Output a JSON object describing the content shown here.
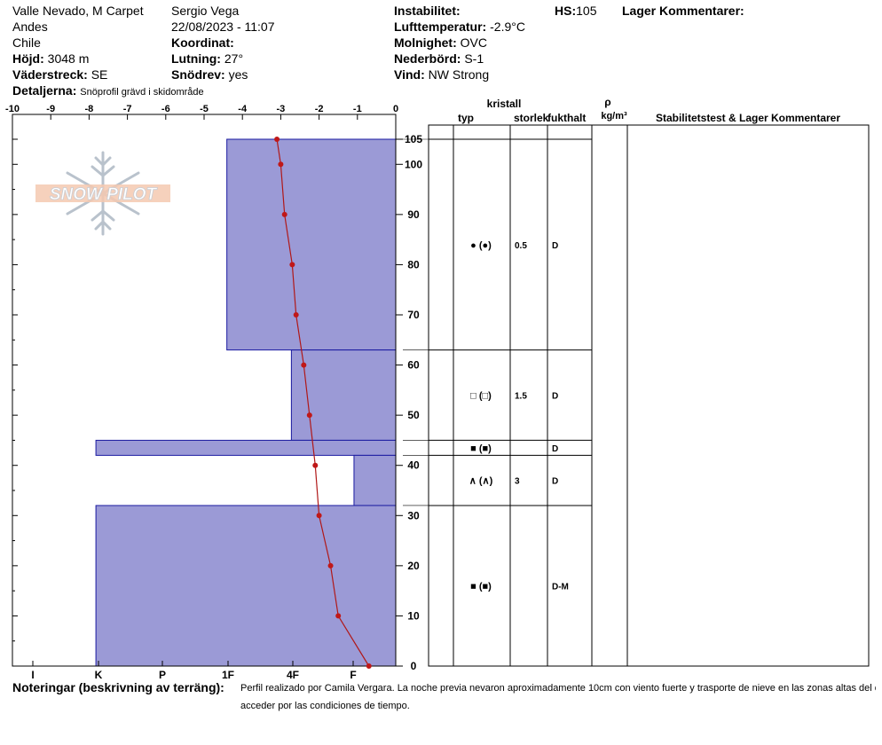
{
  "header": {
    "location": "Valle Nevado, M Carpet",
    "range": "Andes",
    "country": "Chile",
    "elevation_label": "Höjd:",
    "elevation": "3048 m",
    "aspect_label": "Väderstreck:",
    "aspect": "SE",
    "details_label": "Detaljerna:",
    "details": "Snöprofil grävd i skidområde",
    "observer": "Sergio Vega",
    "datetime": "22/08/2023 - 11:07",
    "coord_label": "Koordinat:",
    "slope_label": "Lutning:",
    "slope": "27°",
    "drift_label": "Snödrev:",
    "drift": "yes",
    "instability_label": "Instabilitet:",
    "airtemp_label": "Lufttemperatur:",
    "airtemp": "-2.9°C",
    "sky_label": "Molnighet:",
    "sky": "OVC",
    "precip_label": "Nederbörd:",
    "precip": "S-1",
    "wind_label": "Vind:",
    "wind": "NW Strong",
    "hs_label": "HS:",
    "hs": "105",
    "layer_comments_label": "Lager Kommentarer:"
  },
  "logo_text": "SNOW PILOT",
  "table_headers": {
    "crystal": "kristall",
    "type": "typ",
    "size": "storlek",
    "moisture": "fukthalt",
    "rho": "ρ",
    "density_unit": "kg/m³",
    "stability": "Stabilitetstest & Lager Kommentarer"
  },
  "notes_label": "Noteringar (beskrivning av terräng):",
  "notes_line1": "Perfil realizado por Camila Vergara. La noche previa nevaron aproximadamente 10cm con viento fuerte y trasporte de nieve en las zonas altas del centro, no fue posible",
  "notes_line2": "acceder por las condiciones de tiempo.",
  "chart_data": {
    "type": "profile",
    "temperature_axis": {
      "min": -10,
      "max": 0,
      "ticks": [
        "-10",
        "-9",
        "-8",
        "-7",
        "-6",
        "-5",
        "-4",
        "-3",
        "-2",
        "-1",
        "0"
      ]
    },
    "height_axis": {
      "min": 0,
      "max": 105,
      "ticks": [
        "0",
        "10",
        "20",
        "30",
        "40",
        "50",
        "60",
        "70",
        "80",
        "90",
        "100",
        "105"
      ]
    },
    "hardness_axis": [
      "I",
      "K",
      "P",
      "1F",
      "4F",
      "F"
    ],
    "layers": [
      {
        "bottom": 63,
        "top": 105,
        "hardness_index": 4.45,
        "symbol": "● (●)",
        "size": "0.5",
        "moisture": "D"
      },
      {
        "bottom": 45,
        "top": 63,
        "hardness_index": 2.75,
        "symbol": "□ (□)",
        "size": "1.5",
        "moisture": "D"
      },
      {
        "bottom": 42,
        "top": 45,
        "hardness_index": 7.9,
        "symbol": "■ (■)",
        "size": "",
        "moisture": "D"
      },
      {
        "bottom": 32,
        "top": 42,
        "hardness_index": 1.1,
        "symbol": "∧ (∧)",
        "size": "3",
        "moisture": "D"
      },
      {
        "bottom": 0,
        "top": 32,
        "hardness_index": 7.9,
        "symbol": "■ (■)",
        "size": "",
        "moisture": "D-M"
      }
    ],
    "temperature_profile": [
      {
        "height": 105,
        "temp": -3.1
      },
      {
        "height": 100,
        "temp": -3.0
      },
      {
        "height": 90,
        "temp": -2.9
      },
      {
        "height": 80,
        "temp": -2.7
      },
      {
        "height": 70,
        "temp": -2.6
      },
      {
        "height": 60,
        "temp": -2.4
      },
      {
        "height": 50,
        "temp": -2.25
      },
      {
        "height": 40,
        "temp": -2.1
      },
      {
        "height": 30,
        "temp": -2.0
      },
      {
        "height": 20,
        "temp": -1.7
      },
      {
        "height": 10,
        "temp": -1.5
      },
      {
        "height": 0,
        "temp": -0.7
      }
    ]
  }
}
